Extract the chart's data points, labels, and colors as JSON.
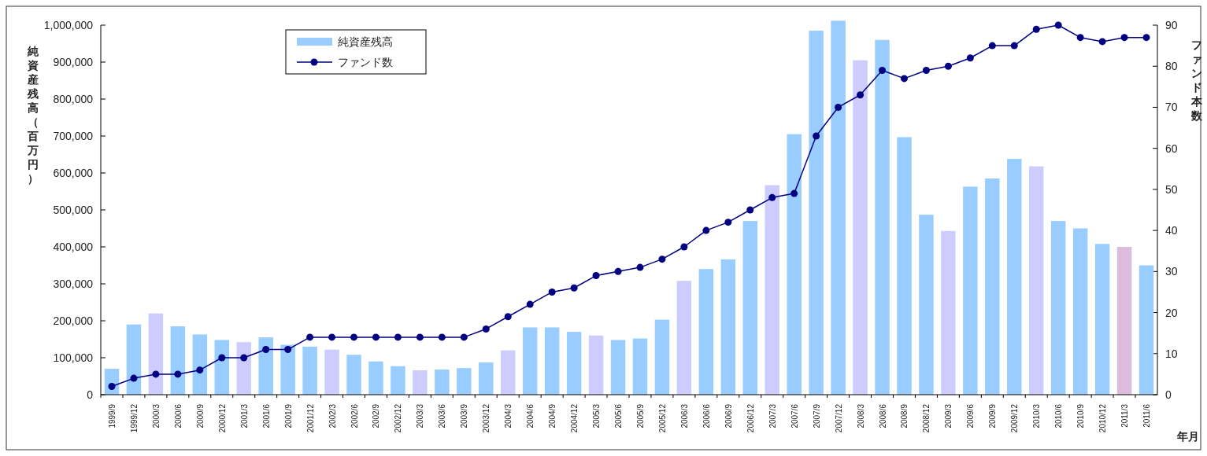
{
  "chart_data": {
    "type": "bar",
    "xlabel": "年月",
    "ylabel": "純資産残高（百万円）",
    "y2label": "ファンド本数",
    "categories": [
      "1999/9",
      "1999/12",
      "2000/3",
      "2000/6",
      "2000/9",
      "2000/12",
      "2001/3",
      "2001/6",
      "2001/9",
      "2001/12",
      "2002/3",
      "2002/6",
      "2002/9",
      "2002/12",
      "2003/3",
      "2003/6",
      "2003/9",
      "2003/12",
      "2004/3",
      "2004/6",
      "2004/9",
      "2004/12",
      "2005/3",
      "2005/6",
      "2005/9",
      "2005/12",
      "2006/3",
      "2006/6",
      "2006/9",
      "2006/12",
      "2007/3",
      "2007/6",
      "2007/9",
      "2007/12",
      "2008/3",
      "2008/6",
      "2008/9",
      "2008/12",
      "2009/3",
      "2009/6",
      "2009/9",
      "2009/12",
      "2010/3",
      "2010/6",
      "2010/9",
      "2010/12",
      "2011/3",
      "2011/6"
    ],
    "series": [
      {
        "name": "純資産残高",
        "color": "#99ccff",
        "colors": [
          "#99ccff",
          "#99ccff",
          "#ccccff",
          "#99ccff",
          "#99ccff",
          "#99ccff",
          "#ccccff",
          "#99ccff",
          "#99ccff",
          "#99ccff",
          "#ccccff",
          "#99ccff",
          "#99ccff",
          "#99ccff",
          "#ccccff",
          "#99ccff",
          "#99ccff",
          "#99ccff",
          "#ccccff",
          "#99ccff",
          "#99ccff",
          "#99ccff",
          "#ccccff",
          "#99ccff",
          "#99ccff",
          "#99ccff",
          "#ccccff",
          "#99ccff",
          "#99ccff",
          "#99ccff",
          "#ccccff",
          "#99ccff",
          "#99ccff",
          "#99ccff",
          "#ccccff",
          "#99ccff",
          "#99ccff",
          "#99ccff",
          "#ccccff",
          "#99ccff",
          "#99ccff",
          "#99ccff",
          "#ccccff",
          "#99ccff",
          "#99ccff",
          "#99ccff",
          "#ddbbdd",
          "#99ccff"
        ],
        "values": [
          70000,
          190000,
          220000,
          185000,
          163000,
          148000,
          142000,
          155000,
          135000,
          130000,
          122000,
          108000,
          90000,
          77000,
          66000,
          68000,
          72000,
          87000,
          120000,
          182000,
          182000,
          170000,
          160000,
          148000,
          152000,
          203000,
          308000,
          340000,
          366000,
          470000,
          567000,
          705000,
          985000,
          1012000,
          905000,
          960000,
          697000,
          487000,
          443000,
          563000,
          585000,
          638000,
          618000,
          470000,
          450000,
          408000,
          400000,
          350000
        ]
      },
      {
        "name": "ファンド数",
        "type": "line",
        "axis": "y2",
        "color": "#000080",
        "marker": "circle",
        "values": [
          2,
          4,
          5,
          5,
          6,
          9,
          9,
          11,
          11,
          14,
          14,
          14,
          14,
          14,
          14,
          14,
          14,
          16,
          19,
          22,
          25,
          26,
          29,
          30,
          31,
          33,
          36,
          40,
          42,
          45,
          48,
          49,
          63,
          70,
          73,
          79,
          77,
          79,
          80,
          82,
          85,
          85,
          89,
          90,
          87,
          86,
          87,
          87
        ]
      }
    ],
    "ylim": [
      0,
      1015000
    ],
    "yticks": [
      {
        "value": 0,
        "label": "0"
      },
      {
        "value": 100000,
        "label": "100,000"
      },
      {
        "value": 200000,
        "label": "200,000"
      },
      {
        "value": 300000,
        "label": "300,000"
      },
      {
        "value": 400000,
        "label": "400,000"
      },
      {
        "value": 500000,
        "label": "500,000"
      },
      {
        "value": 600000,
        "label": "600,000"
      },
      {
        "value": 700000,
        "label": "700,000"
      },
      {
        "value": 800000,
        "label": "800,000"
      },
      {
        "value": 900000,
        "label": "900,000"
      },
      {
        "value": 1000000,
        "label": "1,000,000"
      }
    ],
    "y2lim": [
      0,
      91.35
    ],
    "y2ticks": [
      0,
      10,
      20,
      30,
      40,
      50,
      60,
      70,
      80,
      90
    ],
    "legend": "top left",
    "grid": false
  }
}
